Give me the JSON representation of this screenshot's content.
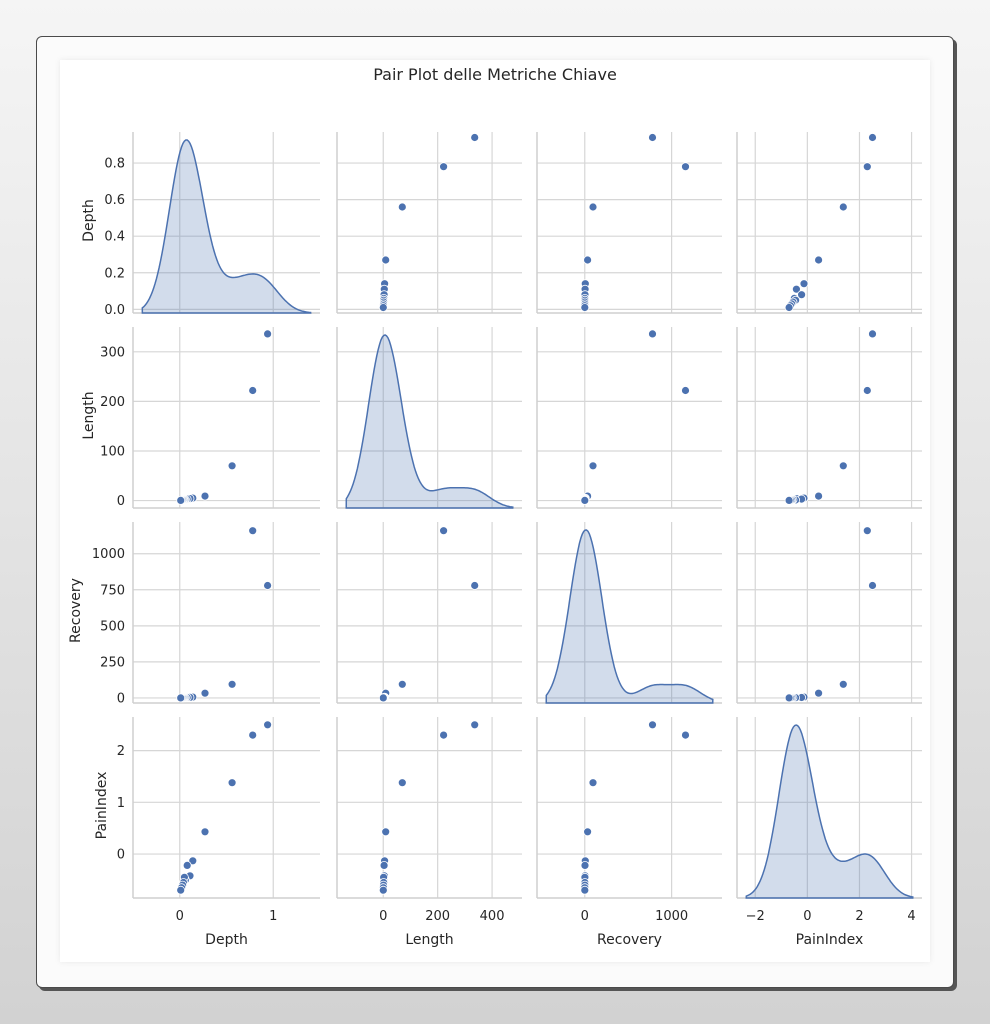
{
  "window": {
    "background": "#e6e6e6",
    "frame_border": "#4a4a4a"
  },
  "chart_data": {
    "type": "scatter",
    "subtype": "pairplot",
    "title": "Pair Plot delle Metriche Chiave",
    "variables": [
      "Depth",
      "Length",
      "Recovery",
      "PainIndex"
    ],
    "diagonal": "kde",
    "color": "#4c72b0",
    "grid": true,
    "axes": {
      "Depth": {
        "ticks_x": [
          "0",
          "1"
        ],
        "ticks_y": [
          "0.0",
          "0.2",
          "0.4",
          "0.6",
          "0.8"
        ],
        "xlim": [
          -0.5,
          1.5
        ],
        "ylim": [
          -0.02,
          0.97
        ]
      },
      "Length": {
        "ticks_x": [
          "0",
          "200",
          "400"
        ],
        "ticks_y": [
          "0",
          "100",
          "200",
          "300"
        ],
        "xlim": [
          -170,
          510
        ],
        "ylim": [
          -15,
          350
        ]
      },
      "Recovery": {
        "ticks_x": [
          "0",
          "1000"
        ],
        "ticks_y": [
          "0",
          "250",
          "500",
          "750",
          "1000"
        ],
        "xlim": [
          -550,
          1580
        ],
        "ylim": [
          -35,
          1220
        ]
      },
      "PainIndex": {
        "ticks_x": [
          "−2",
          "0",
          "2",
          "4"
        ],
        "ticks_y": [
          "0",
          "1",
          "2"
        ],
        "xlim": [
          -2.7,
          4.4
        ],
        "ylim": [
          -0.85,
          2.65
        ]
      }
    },
    "points": [
      {
        "Depth": 0.94,
        "Length": 336,
        "Recovery": 780,
        "PainIndex": 2.5
      },
      {
        "Depth": 0.78,
        "Length": 222,
        "Recovery": 1160,
        "PainIndex": 2.3
      },
      {
        "Depth": 0.56,
        "Length": 70,
        "Recovery": 95,
        "PainIndex": 1.38
      },
      {
        "Depth": 0.27,
        "Length": 9,
        "Recovery": 33,
        "PainIndex": 0.43
      },
      {
        "Depth": 0.14,
        "Length": 5,
        "Recovery": 6,
        "PainIndex": -0.13
      },
      {
        "Depth": 0.11,
        "Length": 4,
        "Recovery": 4,
        "PainIndex": -0.42
      },
      {
        "Depth": 0.08,
        "Length": 3,
        "Recovery": 3,
        "PainIndex": -0.22
      },
      {
        "Depth": 0.06,
        "Length": 2,
        "Recovery": 2,
        "PainIndex": -0.5
      },
      {
        "Depth": 0.05,
        "Length": 1.2,
        "Recovery": 1.5,
        "PainIndex": -0.45
      },
      {
        "Depth": 0.04,
        "Length": 1.5,
        "Recovery": 1,
        "PainIndex": -0.55
      },
      {
        "Depth": 0.03,
        "Length": 1,
        "Recovery": 1,
        "PainIndex": -0.6
      },
      {
        "Depth": 0.02,
        "Length": 0.5,
        "Recovery": 0.5,
        "PainIndex": -0.65
      },
      {
        "Depth": 0.01,
        "Length": 0.3,
        "Recovery": 0.3,
        "PainIndex": -0.7
      }
    ],
    "kde_peaks": {
      "Depth": {
        "main_peak_x": 0.08,
        "secondary_bump_x": 0.8
      },
      "Length": {
        "main_peak_x": 0,
        "secondary_bump_x": 280
      },
      "Recovery": {
        "main_peak_x": 0,
        "secondary_bump_x": 1000
      },
      "PainIndex": {
        "main_peak_x": -0.5,
        "secondary_bump_x": 2.3
      }
    }
  }
}
